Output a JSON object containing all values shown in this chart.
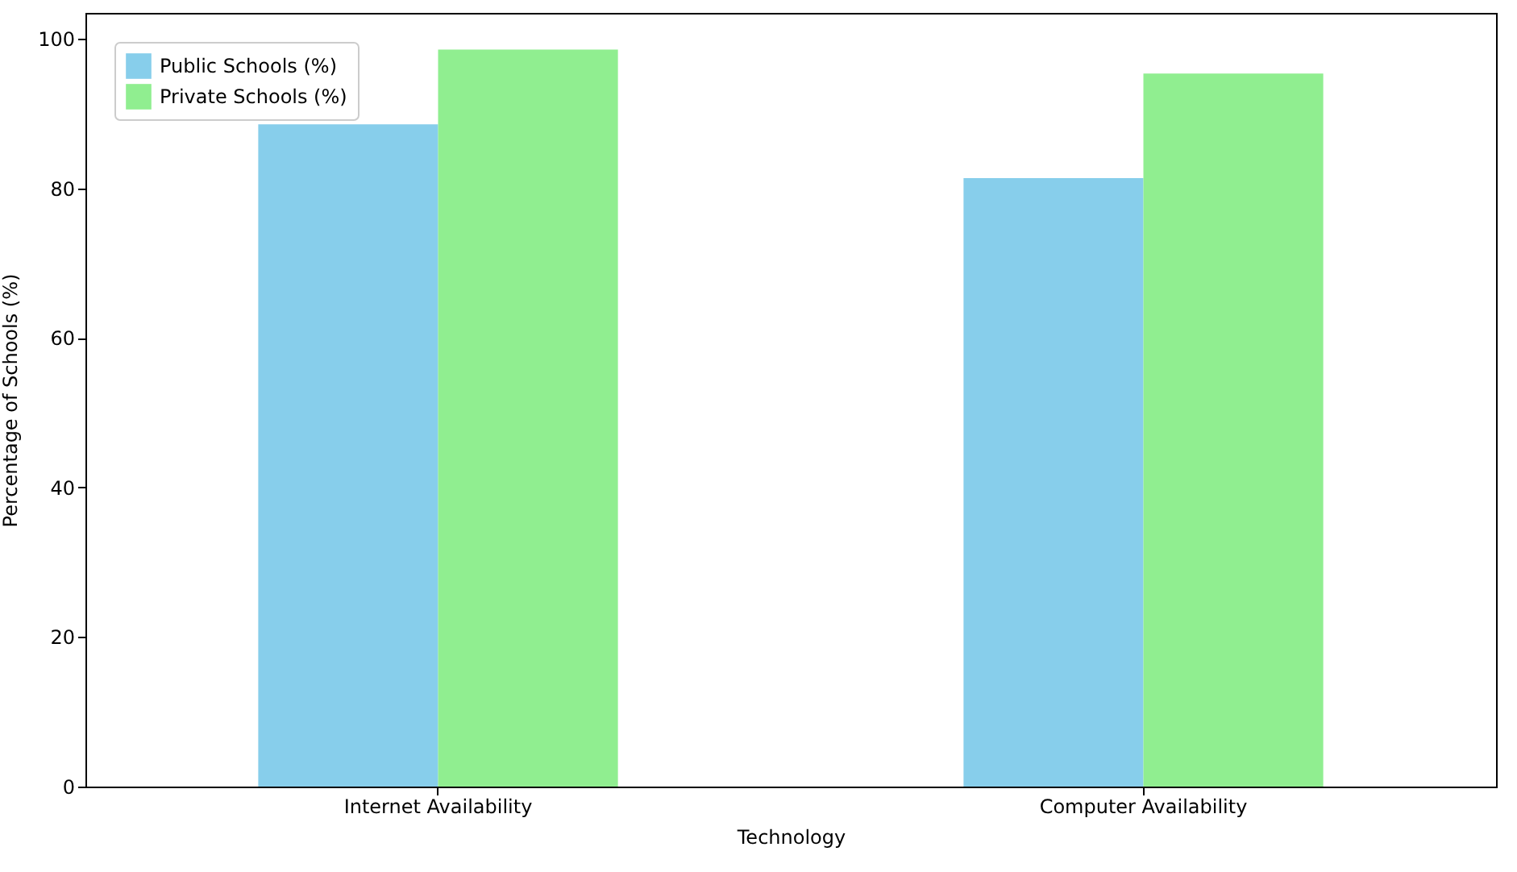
{
  "chart_data": {
    "type": "bar",
    "xlabel": "Technology",
    "ylabel": "Percentage of Schools (%)",
    "categories": [
      "Internet Availability",
      "Computer Availability"
    ],
    "series": [
      {
        "name": "Public Schools (%)",
        "color": "#87ceeb",
        "values": [
          88.6,
          81.4
        ]
      },
      {
        "name": "Private Schools (%)",
        "color": "#90ee90",
        "values": [
          98.6,
          95.4
        ]
      }
    ],
    "ylim": [
      0,
      103.5
    ],
    "yticks": [
      0,
      20,
      40,
      60,
      80,
      100
    ],
    "legend": "top left",
    "grid": false
  }
}
